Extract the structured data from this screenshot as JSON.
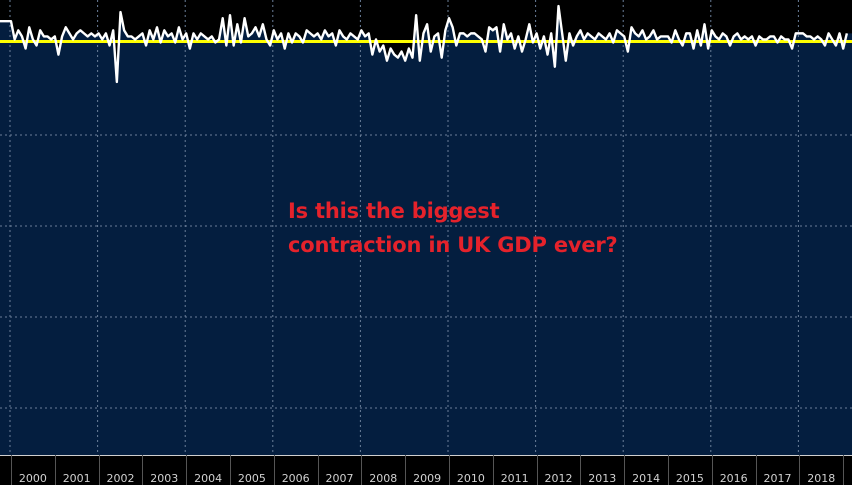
{
  "chart_data": {
    "type": "area",
    "title": "",
    "xlabel": "",
    "ylabel": "",
    "frequency": "monthly",
    "x_start": "2000-01",
    "x_tick_labels": [
      "2000",
      "2001",
      "2002",
      "2003",
      "2004",
      "2005",
      "2006",
      "2007",
      "2008",
      "2009",
      "2010",
      "2011",
      "2012",
      "2013",
      "2014",
      "2015",
      "2016",
      "2017",
      "2018"
    ],
    "ylim": [
      -13.6,
      1.4
    ],
    "y_gridlines": [
      0,
      -3,
      -6,
      -9,
      -12
    ],
    "grid": true,
    "reference_line": {
      "value": 0,
      "color": "#ffff00"
    },
    "series": [
      {
        "color": "#ffffff",
        "fill_color": "#041e3f",
        "values_by_year": {
          "2000": [
            0.7,
            0.1,
            0.4,
            0.2,
            -0.2,
            0.5,
            0.1,
            -0.1,
            0.4,
            0.2,
            0.2,
            0.1
          ],
          "2001": [
            0.2,
            -0.4,
            0.2,
            0.5,
            0.3,
            0.1,
            0.3,
            0.4,
            0.3,
            0.2,
            0.3,
            0.2
          ],
          "2002": [
            0.3,
            0.1,
            0.3,
            -0.1,
            0.4,
            -1.3,
            1.0,
            0.4,
            0.2,
            0.2,
            0.1,
            0.2
          ],
          "2003": [
            0.3,
            -0.1,
            0.4,
            0.1,
            0.5,
            0.0,
            0.4,
            0.2,
            0.3,
            0.0,
            0.5,
            0.1
          ],
          "2004": [
            0.3,
            -0.2,
            0.3,
            0.1,
            0.3,
            0.2,
            0.1,
            0.2,
            0.0,
            0.1,
            0.8,
            -0.1
          ],
          "2005": [
            0.9,
            -0.1,
            0.6,
            0.0,
            0.8,
            0.2,
            0.3,
            0.5,
            0.2,
            0.6,
            0.1,
            -0.1
          ],
          "2006": [
            0.4,
            0.1,
            0.3,
            -0.2,
            0.3,
            0.0,
            0.3,
            0.2,
            0.0,
            0.4,
            0.3,
            0.2
          ],
          "2007": [
            0.3,
            0.1,
            0.4,
            0.2,
            0.3,
            -0.1,
            0.4,
            0.2,
            0.1,
            0.3,
            0.2,
            0.1
          ],
          "2008": [
            0.4,
            0.2,
            0.3,
            -0.4,
            0.1,
            -0.3,
            -0.1,
            -0.6,
            -0.2,
            -0.4,
            -0.5,
            -0.3
          ],
          "2009": [
            -0.6,
            -0.2,
            -0.5,
            0.9,
            -0.6,
            0.3,
            0.6,
            -0.3,
            0.2,
            0.3,
            -0.5,
            0.4
          ],
          "2010": [
            0.8,
            0.5,
            -0.1,
            0.3,
            0.3,
            0.2,
            0.3,
            0.3,
            0.2,
            0.1,
            -0.3,
            0.5
          ],
          "2011": [
            0.4,
            0.5,
            -0.3,
            0.6,
            0.1,
            0.3,
            -0.2,
            0.2,
            -0.3,
            0.1,
            0.6,
            0.0
          ],
          "2012": [
            0.3,
            -0.2,
            0.2,
            -0.4,
            0.3,
            -0.8,
            1.2,
            0.3,
            -0.6,
            0.3,
            -0.1,
            0.2
          ],
          "2013": [
            0.4,
            0.1,
            0.3,
            0.2,
            0.1,
            0.3,
            0.2,
            0.1,
            0.3,
            0.0,
            0.4,
            0.3
          ],
          "2014": [
            0.2,
            -0.3,
            0.5,
            0.3,
            0.2,
            0.4,
            0.1,
            0.2,
            0.4,
            0.1,
            0.2,
            0.2
          ],
          "2015": [
            0.2,
            0.0,
            0.4,
            0.1,
            -0.1,
            0.3,
            0.3,
            -0.2,
            0.4,
            -0.1,
            0.6,
            -0.2
          ],
          "2016": [
            0.4,
            0.2,
            0.1,
            0.3,
            0.2,
            -0.1,
            0.2,
            0.3,
            0.1,
            0.2,
            0.1,
            0.2
          ],
          "2017": [
            -0.1,
            0.2,
            0.1,
            0.1,
            0.2,
            0.2,
            0.0,
            0.2,
            0.1,
            0.1,
            -0.2,
            0.3
          ],
          "2018": [
            0.3,
            0.3,
            0.2,
            0.2,
            0.1,
            0.2,
            0.1,
            -0.1,
            0.3,
            0.1,
            -0.1,
            0.3
          ],
          "2019": [
            -0.2,
            0.3
          ]
        }
      }
    ],
    "annotation": {
      "lines": [
        "Is this the biggest",
        "contraction in UK GDP ever?"
      ],
      "color": "#e5222b"
    }
  }
}
